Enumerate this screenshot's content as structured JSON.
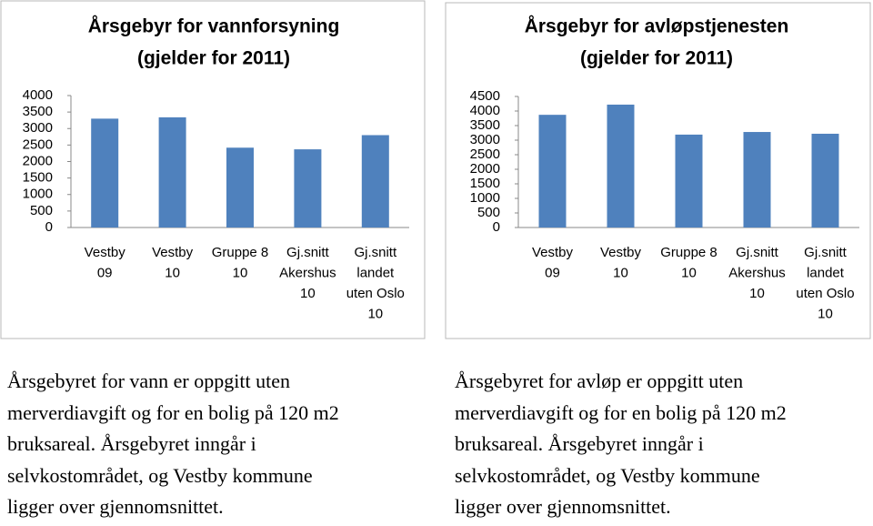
{
  "chart_data": [
    {
      "type": "bar",
      "title": [
        "Årsgebyr for vannforsyning",
        "(gjelder for 2011)"
      ],
      "categories": [
        [
          "Vestby",
          "09"
        ],
        [
          "Vestby",
          "10"
        ],
        [
          "Gruppe 8",
          "10"
        ],
        [
          "Gj.snitt",
          "Akershus",
          "10"
        ],
        [
          "Gj.snitt",
          "landet",
          "uten Oslo",
          "10"
        ]
      ],
      "values": [
        3300,
        3340,
        2420,
        2370,
        2800
      ],
      "color": "#4f81bd",
      "ylim": [
        0,
        4000
      ],
      "yticks": [
        0,
        500,
        1000,
        1500,
        2000,
        2500,
        3000,
        3500,
        4000
      ]
    },
    {
      "type": "bar",
      "title": [
        "Årsgebyr for avløpstjenesten",
        "(gjelder for 2011)"
      ],
      "categories": [
        [
          "Vestby",
          "09"
        ],
        [
          "Vestby",
          "10"
        ],
        [
          "Gruppe 8",
          "10"
        ],
        [
          "Gj.snitt",
          "Akershus",
          "10"
        ],
        [
          "Gj.snitt",
          "landet",
          "uten Oslo",
          "10"
        ]
      ],
      "values": [
        3870,
        4220,
        3190,
        3280,
        3220
      ],
      "color": "#4f81bd",
      "ylim": [
        0,
        4500
      ],
      "yticks": [
        0,
        500,
        1000,
        1500,
        2000,
        2500,
        3000,
        3500,
        4000,
        4500
      ]
    }
  ],
  "texts": [
    {
      "lines": [
        "Årsgebyret for vann er oppgitt uten",
        "merverdiavgift og for en bolig på 120 m2",
        "bruksareal. Årsgebyret inngår i",
        "selvkostområdet, og Vestby kommune",
        "ligger over gjennomsnittet."
      ]
    },
    {
      "lines": [
        "Årsgebyret for avløp er oppgitt uten",
        "merverdiavgift og for en bolig på 120 m2",
        "bruksareal. Årsgebyret inngår i",
        "selvkostområdet, og Vestby kommune",
        "ligger over gjennomsnittet."
      ]
    }
  ]
}
